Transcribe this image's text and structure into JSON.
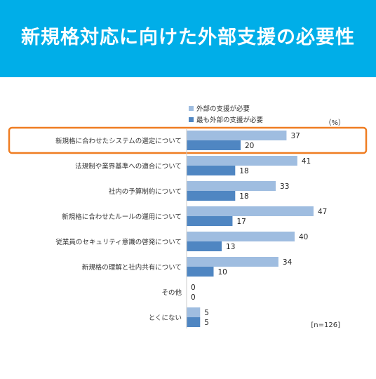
{
  "header": {
    "title": "新規格対応に向けた外部支援の必要性"
  },
  "colors": {
    "banner": "#00aee8",
    "series1": "#9fbde0",
    "series2": "#4f86c2",
    "highlight": "#ef7d22"
  },
  "chart_data": {
    "type": "bar",
    "orientation": "horizontal",
    "title": "新規格対応に向けた外部支援の必要性",
    "unit": "（%）",
    "note": "[n=126]",
    "categories": [
      "新規格に合わせたシステムの選定について",
      "法規制や業界基準への適合について",
      "社内の予算制約について",
      "新規格に合わせたルールの運用について",
      "従業員のセキュリティ意識の啓発について",
      "新規格の理解と社内共有について",
      "その他",
      "とくにない"
    ],
    "series": [
      {
        "name": "外部の支援が必要",
        "values": [
          37,
          41,
          33,
          47,
          40,
          34,
          0,
          5
        ]
      },
      {
        "name": "最も外部の支援が必要",
        "values": [
          20,
          18,
          18,
          17,
          13,
          10,
          0,
          5
        ]
      }
    ],
    "highlighted_category": "新規格に合わせたシステムの選定について",
    "xlim": [
      0,
      50
    ],
    "grid": false,
    "legend_position": "top"
  }
}
